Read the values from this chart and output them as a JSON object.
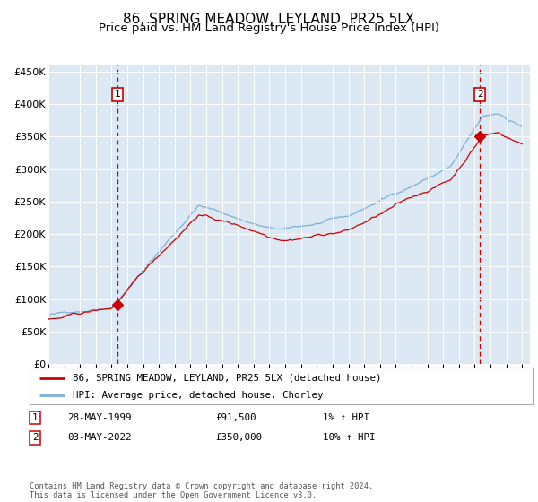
{
  "title": "86, SPRING MEADOW, LEYLAND, PR25 5LX",
  "subtitle": "Price paid vs. HM Land Registry's House Price Index (HPI)",
  "title_fontsize": 11,
  "subtitle_fontsize": 9.5,
  "plot_bg_color": "#dce9f5",
  "fig_bg_color": "#ffffff",
  "ylim": [
    0,
    460000
  ],
  "yticks": [
    0,
    50000,
    100000,
    150000,
    200000,
    250000,
    300000,
    350000,
    400000,
    450000
  ],
  "x_start_year": 1995,
  "x_end_year": 2025,
  "sale1_date": 1999.38,
  "sale1_price": 91500,
  "sale2_date": 2022.33,
  "sale2_price": 350000,
  "line_color_hpi": "#7bafd4",
  "line_color_property": "#cc0000",
  "marker_color": "#cc0000",
  "dashed_line_color": "#cc0000",
  "legend_label_property": "86, SPRING MEADOW, LEYLAND, PR25 5LX (detached house)",
  "legend_label_hpi": "HPI: Average price, detached house, Chorley",
  "table_row1_date": "28-MAY-1999",
  "table_row1_price": "£91,500",
  "table_row1_change": "1% ↑ HPI",
  "table_row2_date": "03-MAY-2022",
  "table_row2_price": "£350,000",
  "table_row2_change": "10% ↑ HPI",
  "footer_text": "Contains HM Land Registry data © Crown copyright and database right 2024.\nThis data is licensed under the Open Government Licence v3.0.",
  "seed": 42
}
